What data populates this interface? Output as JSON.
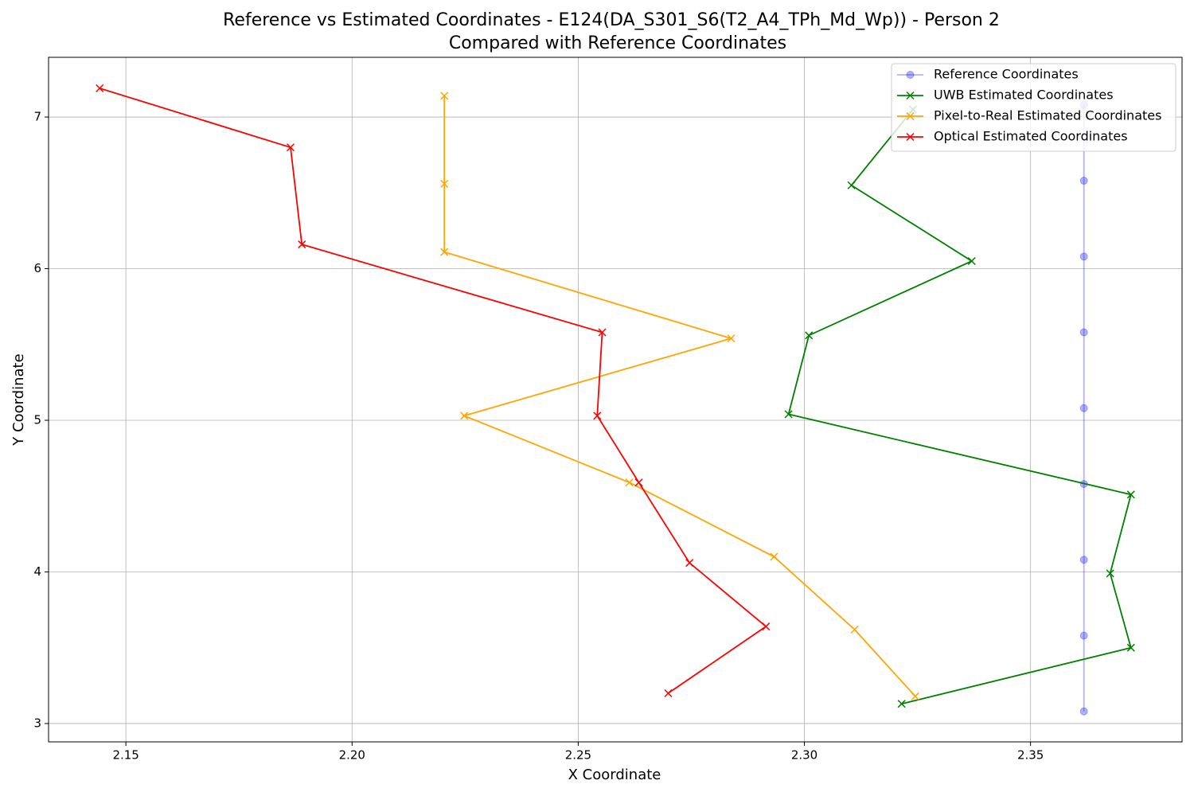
{
  "chart_data": {
    "type": "line",
    "title": "Reference vs Estimated Coordinates - E124(DA_S301_S6(T2_A4_TPh_Md_Wp)) - Person 2",
    "subtitle": "Compared with Reference Coordinates",
    "x_label": "X Coordinate",
    "y_label": "Y Coordinate",
    "xlim": [
      2.1329,
      2.3835
    ],
    "ylim": [
      2.879,
      7.394
    ],
    "xticks": [
      2.15,
      {
        "value": 2.2,
        "label": "2.20"
      },
      2.25,
      {
        "value": 2.3,
        "label": "2.30"
      },
      2.35
    ],
    "yticks": [
      3,
      4,
      5,
      6,
      7
    ],
    "grid": true,
    "legend": "upper right",
    "series": [
      {
        "name": "Reference Coordinates",
        "color": "#0000ff",
        "opacity": 0.3,
        "marker": "o",
        "x": [
          2.3618,
          2.3618,
          2.3618,
          2.3618,
          2.3618,
          2.3618,
          2.3618,
          2.3618,
          2.3618
        ],
        "values": [
          7.08,
          6.58,
          6.08,
          5.58,
          5.08,
          4.58,
          4.08,
          3.58,
          3.08
        ]
      },
      {
        "name": "UWB Estimated Coordinates",
        "color": "#008000",
        "opacity": 1,
        "marker": "x",
        "x": [
          2.324,
          2.3104,
          2.337,
          2.301,
          2.2965,
          2.3722,
          2.3676,
          2.3722,
          2.3215
        ],
        "values": [
          7.05,
          6.55,
          6.05,
          5.56,
          5.04,
          4.51,
          3.99,
          3.5,
          3.13
        ]
      },
      {
        "name": "Pixel-to-Real Estimated Coordinates",
        "color": "#ffa500",
        "opacity": 1,
        "marker": "x",
        "x": [
          2.2204,
          2.2204,
          2.2204,
          2.2838,
          2.2248,
          2.2613,
          2.2933,
          2.3111,
          2.3245
        ],
        "values": [
          7.14,
          6.56,
          6.11,
          5.54,
          5.03,
          4.59,
          4.1,
          3.62,
          3.18
        ]
      },
      {
        "name": "Optical Estimated Coordinates",
        "color": "#ff0000",
        "opacity": 1,
        "marker": "x",
        "x": [
          2.1442,
          2.1864,
          2.1889,
          2.2553,
          2.2542,
          2.2634,
          2.2746,
          2.2915,
          2.2699
        ],
        "values": [
          7.19,
          6.8,
          6.16,
          5.58,
          5.03,
          4.59,
          4.06,
          3.64,
          3.2
        ]
      }
    ]
  }
}
